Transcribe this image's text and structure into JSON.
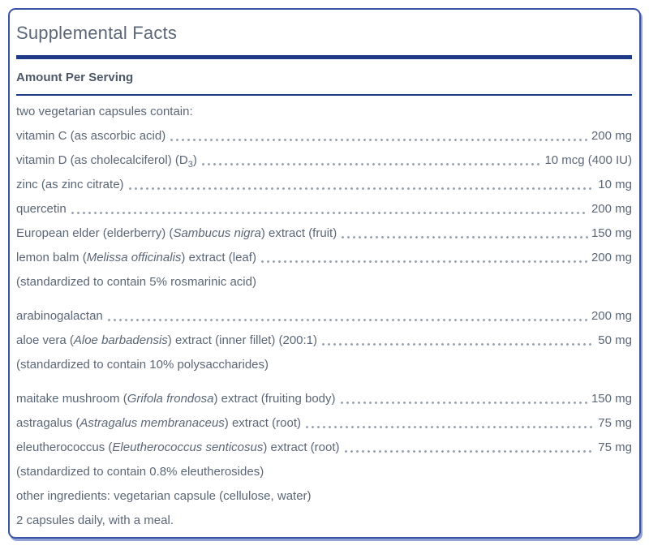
{
  "title": "Supplemental Facts",
  "section_header": "Amount Per Serving",
  "colors": {
    "navy_rule": "#1e3a87",
    "panel_border": "#3a53a4",
    "panel_shadow": "#93a2d6",
    "body_text": "#5b6777",
    "header_text": "#4d5968",
    "leader_dots": "#98a2b0"
  },
  "rows": [
    {
      "kind": "plain",
      "segments": [
        {
          "text": "two vegetarian capsules contain:"
        }
      ]
    },
    {
      "kind": "dotted",
      "segments": [
        {
          "text": "vitamin C (as ascorbic acid)"
        }
      ],
      "amount": "200 mg"
    },
    {
      "kind": "dotted",
      "segments": [
        {
          "text": "vitamin D (as cholecalciferol) (D"
        },
        {
          "text": "3",
          "sub": true
        },
        {
          "text": ")"
        }
      ],
      "amount": "10 mcg (400 IU)"
    },
    {
      "kind": "dotted",
      "segments": [
        {
          "text": "zinc (as zinc citrate)"
        }
      ],
      "amount": "10 mg"
    },
    {
      "kind": "dotted",
      "segments": [
        {
          "text": "quercetin"
        }
      ],
      "amount": "200 mg"
    },
    {
      "kind": "dotted",
      "segments": [
        {
          "text": "European elder (elderberry) ("
        },
        {
          "text": "Sambucus nigra",
          "italic": true
        },
        {
          "text": ") extract (fruit)"
        }
      ],
      "amount": "150 mg"
    },
    {
      "kind": "dotted",
      "segments": [
        {
          "text": "lemon balm ("
        },
        {
          "text": "Melissa officinalis",
          "italic": true
        },
        {
          "text": ") extract (leaf)"
        }
      ],
      "amount": "200 mg"
    },
    {
      "kind": "note",
      "segments": [
        {
          "text": "(standardized to contain 5% rosmarinic acid)"
        }
      ]
    },
    {
      "kind": "dotted",
      "gap": true,
      "segments": [
        {
          "text": "arabinogalactan"
        }
      ],
      "amount": "200 mg"
    },
    {
      "kind": "dotted",
      "segments": [
        {
          "text": "aloe vera ("
        },
        {
          "text": "Aloe barbadensis",
          "italic": true
        },
        {
          "text": ") extract (inner fillet) (200:1)"
        }
      ],
      "amount": "50 mg"
    },
    {
      "kind": "note",
      "segments": [
        {
          "text": "(standardized to contain 10% polysaccharides)"
        }
      ]
    },
    {
      "kind": "dotted",
      "gap": true,
      "segments": [
        {
          "text": "maitake mushroom ("
        },
        {
          "text": "Grifola frondosa",
          "italic": true
        },
        {
          "text": ") extract (fruiting body)"
        }
      ],
      "amount": "150 mg"
    },
    {
      "kind": "dotted",
      "segments": [
        {
          "text": "astragalus ("
        },
        {
          "text": "Astragalus membranaceus",
          "italic": true
        },
        {
          "text": ") extract (root)"
        }
      ],
      "amount": "75 mg"
    },
    {
      "kind": "dotted",
      "segments": [
        {
          "text": "eleutherococcus ("
        },
        {
          "text": "Eleutherococcus senticosus",
          "italic": true
        },
        {
          "text": ") extract (root)"
        }
      ],
      "amount": "75 mg"
    },
    {
      "kind": "note",
      "segments": [
        {
          "text": "(standardized to contain 0.8% eleutherosides)"
        }
      ]
    },
    {
      "kind": "plain",
      "gap_small": true,
      "segments": [
        {
          "text": "other ingredients: vegetarian capsule (cellulose, water)"
        }
      ]
    },
    {
      "kind": "plain",
      "segments": [
        {
          "text": "2 capsules daily, with a meal."
        }
      ]
    }
  ]
}
